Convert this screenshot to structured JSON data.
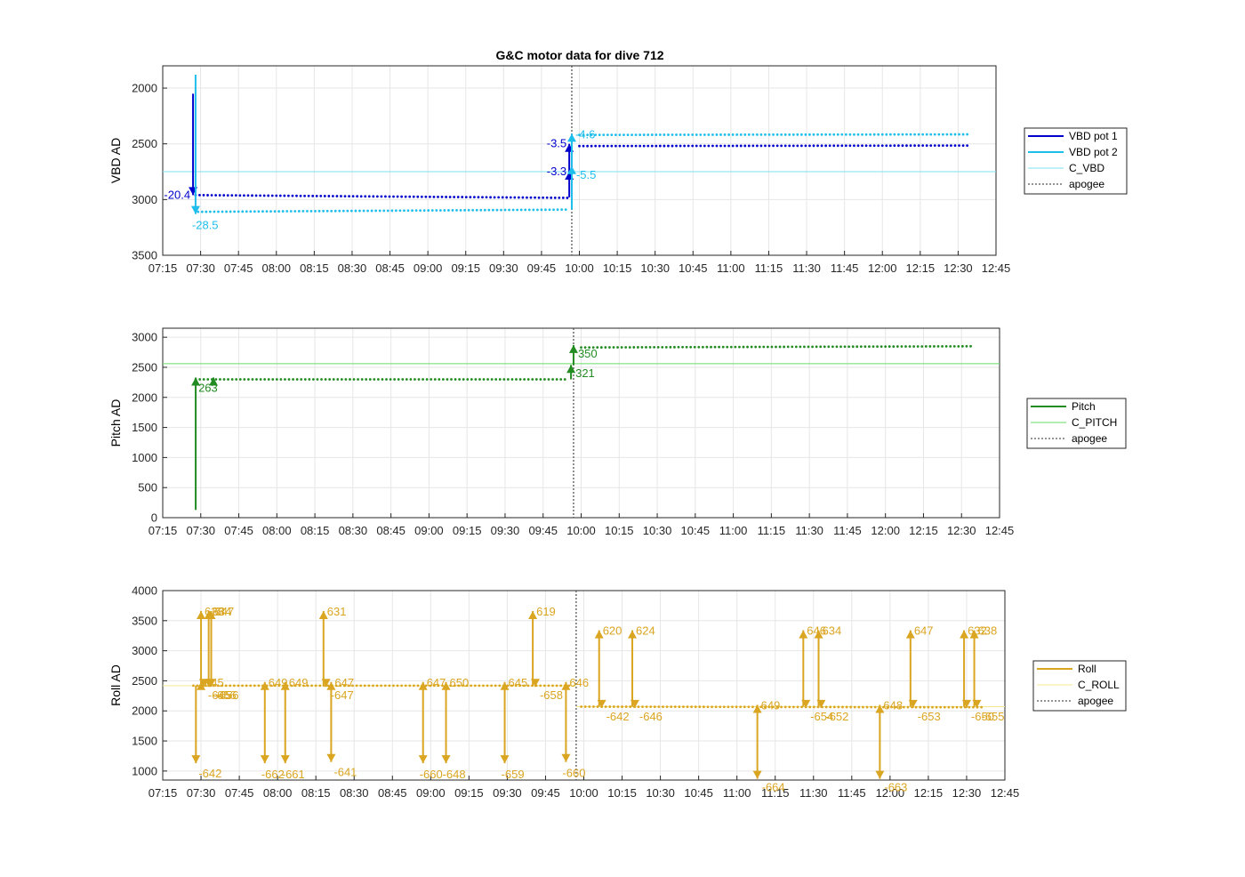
{
  "figure_title": "G&C motor data for dive 712",
  "chart_data": [
    {
      "id": "vbd",
      "type": "line",
      "ylabel": "VBD AD",
      "xlabel": "",
      "ylim": [
        1800,
        3500
      ],
      "y_reversed": true,
      "yticks": [
        2000,
        2500,
        3000,
        3500
      ],
      "xlim": [
        "07:15",
        "12:45"
      ],
      "xticks": [
        "07:15",
        "07:30",
        "07:45",
        "08:00",
        "08:15",
        "08:30",
        "08:45",
        "09:00",
        "09:15",
        "09:30",
        "09:45",
        "10:00",
        "10:15",
        "10:30",
        "10:45",
        "11:00",
        "11:15",
        "11:30",
        "11:45",
        "12:00",
        "12:15",
        "12:30",
        "12:45"
      ],
      "grid": true,
      "legend_position": "outside-right",
      "legend": [
        "VBD pot 1",
        "VBD pot 2",
        "C_VBD",
        "apogee"
      ],
      "colors": {
        "pot1": "#0000cd",
        "pot2": "#1ebeec",
        "c_line": "#7fe0f0",
        "apogee": "#555555"
      },
      "apogee": "09:57",
      "c_value": 2750,
      "series": [
        {
          "name": "VBD pot 1",
          "segments": [
            {
              "x_start": "07:28",
              "x_end": "09:56",
              "y_start": 2960,
              "y_end": 2985
            },
            {
              "x_start": "10:00",
              "x_end": "12:35",
              "y_start": 2520,
              "y_end": 2515
            }
          ]
        },
        {
          "name": "VBD pot 2",
          "segments": [
            {
              "x_start": "07:29",
              "x_end": "09:56",
              "y_start": 3110,
              "y_end": 3090
            },
            {
              "x_start": "10:00",
              "x_end": "12:35",
              "y_start": 2420,
              "y_end": 2415
            }
          ]
        }
      ],
      "moves": [
        {
          "series": "VBD pot 1",
          "x": "07:27",
          "y_from": 2050,
          "y_to": 2960,
          "label": "-20.4",
          "label_pos": "left"
        },
        {
          "series": "VBD pot 2",
          "x": "07:28",
          "y_from": 1880,
          "y_to": 3130,
          "label": "-28.5",
          "label_pos": "below"
        },
        {
          "series": "VBD pot 1",
          "x": "09:56",
          "y_from": 2980,
          "y_to": 2750,
          "label": "-3.3",
          "label_pos": "left"
        },
        {
          "series": "VBD pot 1",
          "x": "09:56",
          "y_from": 2750,
          "y_to": 2500,
          "label": "-3.5",
          "label_pos": "left"
        },
        {
          "series": "VBD pot 2",
          "x": "09:57",
          "y_from": 3090,
          "y_to": 2700,
          "label": "-5.5",
          "label_pos": "right-below"
        },
        {
          "series": "VBD pot 2",
          "x": "09:57",
          "y_from": 2700,
          "y_to": 2410,
          "label": "-4.6",
          "label_pos": "right"
        }
      ]
    },
    {
      "id": "pitch",
      "type": "line",
      "ylabel": "Pitch AD",
      "xlabel": "",
      "ylim": [
        0,
        3150
      ],
      "yticks": [
        0,
        500,
        1000,
        1500,
        2000,
        2500,
        3000
      ],
      "xlim": [
        "07:15",
        "12:45"
      ],
      "xticks": [
        "07:15",
        "07:30",
        "07:45",
        "08:00",
        "08:15",
        "08:30",
        "08:45",
        "09:00",
        "09:15",
        "09:30",
        "09:45",
        "10:00",
        "10:15",
        "10:30",
        "10:45",
        "11:00",
        "11:15",
        "11:30",
        "11:45",
        "12:00",
        "12:15",
        "12:30",
        "12:45"
      ],
      "grid": true,
      "legend_position": "outside-right",
      "legend": [
        "Pitch",
        "C_PITCH",
        "apogee"
      ],
      "colors": {
        "pitch": "#228b22",
        "c_line": "#66dd66",
        "apogee": "#555555"
      },
      "apogee": "09:57",
      "c_value": 2560,
      "series": [
        {
          "name": "Pitch",
          "segments": [
            {
              "x_start": "07:28",
              "x_end": "09:55",
              "y_start": 2300,
              "y_end": 2300
            },
            {
              "x_start": "10:00",
              "x_end": "12:35",
              "y_start": 2830,
              "y_end": 2850
            }
          ]
        }
      ],
      "moves": [
        {
          "series": "Pitch",
          "x": "07:28",
          "y_from": 130,
          "y_to": 2330,
          "label": "263",
          "label_pos": "below-right"
        },
        {
          "series": "Pitch",
          "x": "07:35",
          "y_from": 2280,
          "y_to": 2330,
          "label": "",
          "label_pos": "none"
        },
        {
          "series": "Pitch",
          "x": "09:56",
          "y_from": 2300,
          "y_to": 2540,
          "label": "321",
          "label_pos": "right-below"
        },
        {
          "series": "Pitch",
          "x": "09:57",
          "y_from": 2540,
          "y_to": 2870,
          "label": "350",
          "label_pos": "right-below"
        }
      ]
    },
    {
      "id": "roll",
      "type": "line",
      "ylabel": "Roll AD",
      "xlabel": "",
      "ylim": [
        850,
        4000
      ],
      "yticks": [
        1000,
        1500,
        2000,
        2500,
        3000,
        3500,
        4000
      ],
      "xlim": [
        "07:15",
        "12:45"
      ],
      "xticks": [
        "07:15",
        "07:30",
        "07:45",
        "08:00",
        "08:15",
        "08:30",
        "08:45",
        "09:00",
        "09:15",
        "09:30",
        "09:45",
        "10:00",
        "10:15",
        "10:30",
        "10:45",
        "11:00",
        "11:15",
        "11:30",
        "11:45",
        "12:00",
        "12:15",
        "12:30",
        "12:45"
      ],
      "grid": true,
      "legend_position": "outside-right",
      "legend": [
        "Roll",
        "C_ROLL",
        "apogee"
      ],
      "colors": {
        "roll": "#daa520",
        "c_line": "#f5e890",
        "apogee": "#555555"
      },
      "apogee": "09:57",
      "series": [
        {
          "name": "Roll",
          "segments": [
            {
              "x_start": "07:27",
              "x_end": "09:55",
              "y_start": 2420,
              "y_end": 2420
            },
            {
              "x_start": "09:59",
              "x_end": "12:37",
              "y_start": 2070,
              "y_end": 2060
            }
          ]
        }
      ],
      "c_segments": [
        {
          "x_start": "07:15",
          "x_end": "09:57",
          "y": 2420
        },
        {
          "x_start": "09:57",
          "x_end": "12:45",
          "y": 2070
        }
      ],
      "moves": [
        {
          "x": "07:28",
          "y_from": 2420,
          "y_to": 1130,
          "label": "-642",
          "label_pos": "below-right"
        },
        {
          "x": "07:30",
          "y_from": 2420,
          "y_to": 3660,
          "label": "628",
          "label_pos": "right"
        },
        {
          "x": "07:30",
          "y_from": 2420,
          "y_to": 2480,
          "label": "645",
          "label_pos": "right"
        },
        {
          "x": "07:31",
          "y_from": 2420,
          "y_to": 2400,
          "label": "-645",
          "label_pos": "right-below"
        },
        {
          "x": "07:33",
          "y_from": 2420,
          "y_to": 3660,
          "label": "634",
          "label_pos": "right"
        },
        {
          "x": "07:34",
          "y_from": 2420,
          "y_to": 3660,
          "label": "647",
          "label_pos": "right"
        },
        {
          "x": "07:33",
          "y_from": 2420,
          "y_to": 2400,
          "label": "-656",
          "label_pos": "right-below"
        },
        {
          "x": "07:34",
          "y_from": 2420,
          "y_to": 2400,
          "label": "-656",
          "label_pos": "right-below"
        },
        {
          "x": "07:55",
          "y_from": 2420,
          "y_to": 1130,
          "label": "-662",
          "label_pos": "below"
        },
        {
          "x": "07:55",
          "y_from": 2420,
          "y_to": 2480,
          "label": "649",
          "label_pos": "right"
        },
        {
          "x": "08:03",
          "y_from": 2420,
          "y_to": 1130,
          "label": "-661",
          "label_pos": "below"
        },
        {
          "x": "08:03",
          "y_from": 2420,
          "y_to": 2480,
          "label": "649",
          "label_pos": "right"
        },
        {
          "x": "08:18",
          "y_from": 2420,
          "y_to": 3660,
          "label": "631",
          "label_pos": "right"
        },
        {
          "x": "08:19",
          "y_from": 2420,
          "y_to": 2400,
          "label": "-647",
          "label_pos": "right-below"
        },
        {
          "x": "08:21",
          "y_from": 2420,
          "y_to": 1150,
          "label": "-641",
          "label_pos": "below-right"
        },
        {
          "x": "08:21",
          "y_from": 2420,
          "y_to": 2480,
          "label": "647",
          "label_pos": "right"
        },
        {
          "x": "08:57",
          "y_from": 2420,
          "y_to": 1130,
          "label": "-660",
          "label_pos": "below"
        },
        {
          "x": "08:57",
          "y_from": 2420,
          "y_to": 2480,
          "label": "647",
          "label_pos": "right"
        },
        {
          "x": "09:06",
          "y_from": 2420,
          "y_to": 1130,
          "label": "-648",
          "label_pos": "below"
        },
        {
          "x": "09:06",
          "y_from": 2420,
          "y_to": 2480,
          "label": "650",
          "label_pos": "right"
        },
        {
          "x": "09:29",
          "y_from": 2420,
          "y_to": 1130,
          "label": "-659",
          "label_pos": "below"
        },
        {
          "x": "09:29",
          "y_from": 2420,
          "y_to": 2480,
          "label": "645",
          "label_pos": "right"
        },
        {
          "x": "09:40",
          "y_from": 2420,
          "y_to": 3660,
          "label": "619",
          "label_pos": "right"
        },
        {
          "x": "09:41",
          "y_from": 2420,
          "y_to": 2400,
          "label": "-658",
          "label_pos": "right-below"
        },
        {
          "x": "09:53",
          "y_from": 2420,
          "y_to": 1150,
          "label": "-660",
          "label_pos": "below"
        },
        {
          "x": "09:53",
          "y_from": 2420,
          "y_to": 2480,
          "label": "646",
          "label_pos": "right"
        },
        {
          "x": "10:06",
          "y_from": 2070,
          "y_to": 3340,
          "label": "620",
          "label_pos": "right"
        },
        {
          "x": "10:07",
          "y_from": 2070,
          "y_to": 2050,
          "label": "-642",
          "label_pos": "right-below"
        },
        {
          "x": "10:19",
          "y_from": 2070,
          "y_to": 3340,
          "label": "624",
          "label_pos": "right"
        },
        {
          "x": "10:20",
          "y_from": 2070,
          "y_to": 2050,
          "label": "-646",
          "label_pos": "right-below"
        },
        {
          "x": "11:08",
          "y_from": 2070,
          "y_to": 870,
          "label": "-664",
          "label_pos": "right-below"
        },
        {
          "x": "11:08",
          "y_from": 2070,
          "y_to": 2100,
          "label": "649",
          "label_pos": "right"
        },
        {
          "x": "11:26",
          "y_from": 2070,
          "y_to": 3340,
          "label": "646",
          "label_pos": "right"
        },
        {
          "x": "11:27",
          "y_from": 2070,
          "y_to": 2050,
          "label": "-654",
          "label_pos": "right-below"
        },
        {
          "x": "11:32",
          "y_from": 2070,
          "y_to": 3340,
          "label": "634",
          "label_pos": "right"
        },
        {
          "x": "11:33",
          "y_from": 2070,
          "y_to": 2050,
          "label": "-652",
          "label_pos": "right-below"
        },
        {
          "x": "11:56",
          "y_from": 2070,
          "y_to": 870,
          "label": "-663",
          "label_pos": "right-below"
        },
        {
          "x": "11:56",
          "y_from": 2070,
          "y_to": 2100,
          "label": "648",
          "label_pos": "right"
        },
        {
          "x": "12:08",
          "y_from": 2070,
          "y_to": 3340,
          "label": "647",
          "label_pos": "right"
        },
        {
          "x": "12:09",
          "y_from": 2070,
          "y_to": 2050,
          "label": "-653",
          "label_pos": "right-below"
        },
        {
          "x": "12:29",
          "y_from": 2070,
          "y_to": 3340,
          "label": "632",
          "label_pos": "right"
        },
        {
          "x": "12:30",
          "y_from": 2070,
          "y_to": 2050,
          "label": "-650",
          "label_pos": "right-below"
        },
        {
          "x": "12:33",
          "y_from": 2070,
          "y_to": 3340,
          "label": "638",
          "label_pos": "right"
        },
        {
          "x": "12:34",
          "y_from": 2070,
          "y_to": 2050,
          "label": "-655",
          "label_pos": "right-below"
        }
      ]
    }
  ]
}
